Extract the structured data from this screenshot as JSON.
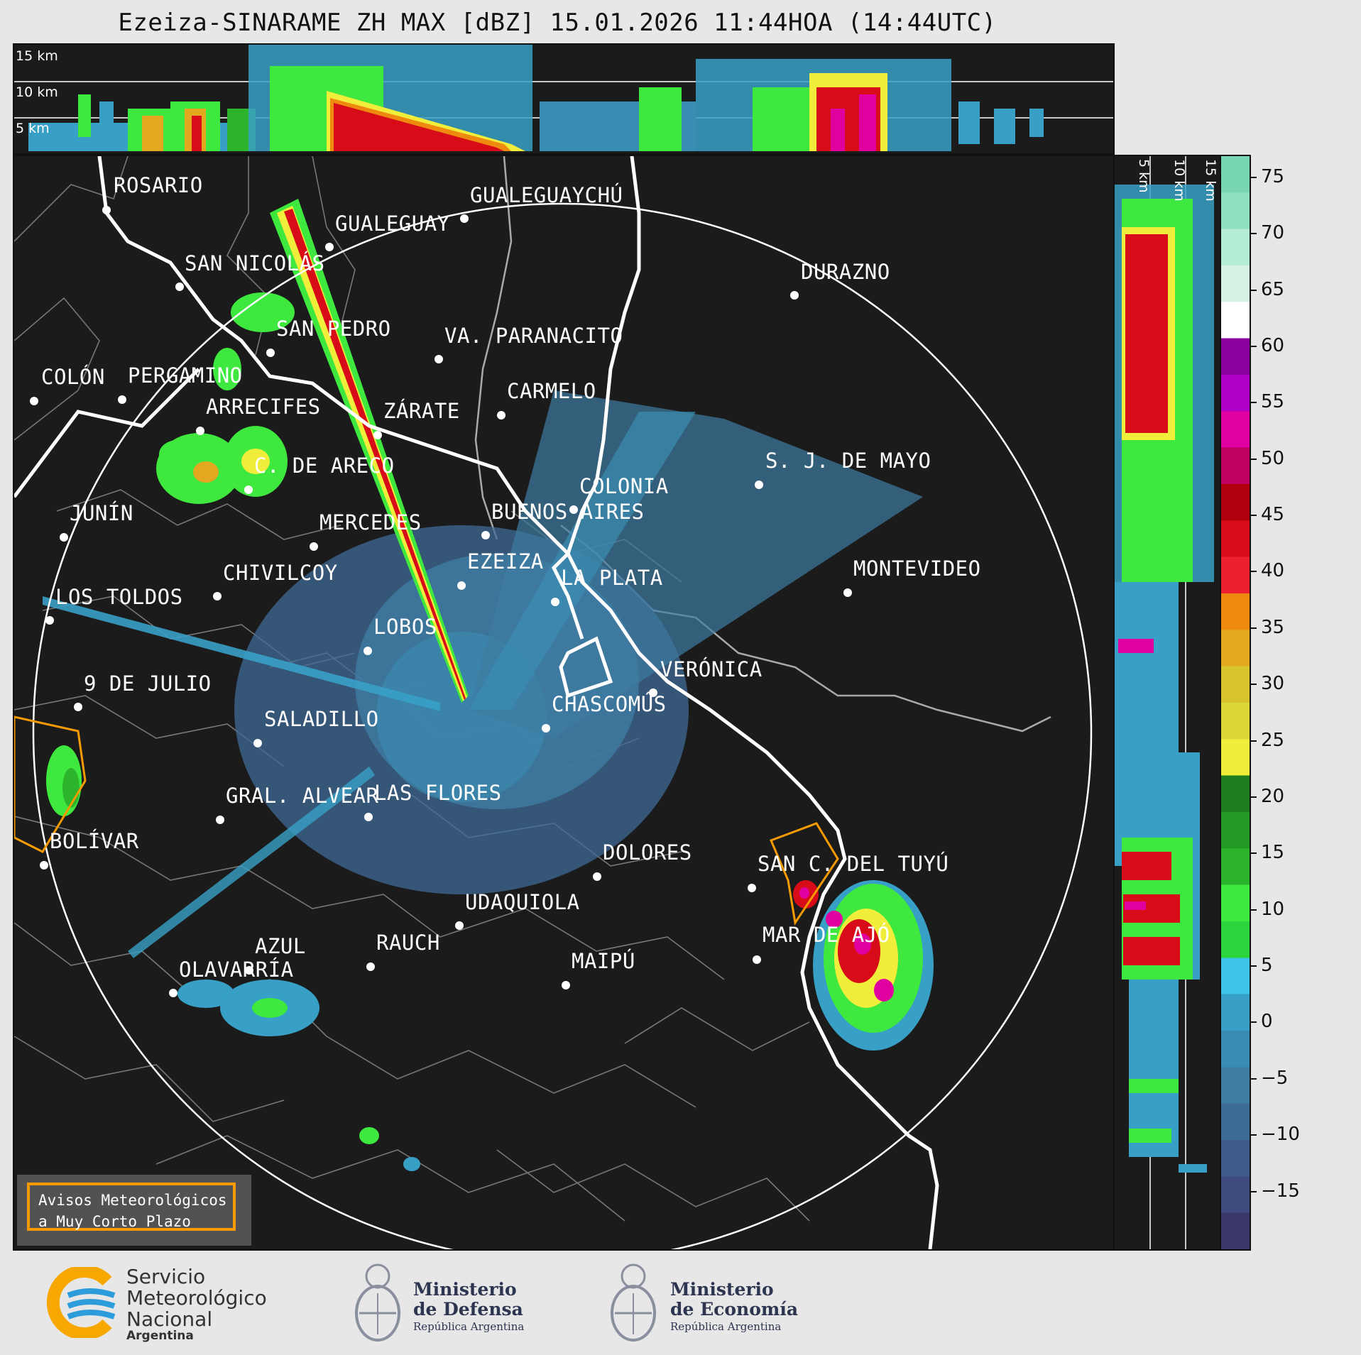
{
  "title": "Ezeiza-SINARAME ZH MAX [dBZ] 15.01.2026 11:44HOA (14:44UTC)",
  "top_panel": {
    "altitudes": [
      "15 km",
      "10 km",
      "5 km"
    ]
  },
  "side_panel": {
    "altitudes": [
      "5 km",
      "10 km",
      "15 km"
    ]
  },
  "colorbar": {
    "ticks": [
      "75",
      "70",
      "65",
      "60",
      "55",
      "50",
      "45",
      "40",
      "35",
      "30",
      "25",
      "20",
      "15",
      "10",
      "5",
      "0",
      "−5",
      "−10",
      "−15"
    ],
    "range": [
      -20,
      77
    ],
    "colors": [
      "#3a3868",
      "#3d4a7e",
      "#3f5b8c",
      "#3f6b97",
      "#3e7ca3",
      "#3a8db2",
      "#38a0c6",
      "#3ec2e8",
      "#2ad43a",
      "#3ee83e",
      "#2cb42c",
      "#239a23",
      "#1e7e1e",
      "#f0ee3a",
      "#dcd838",
      "#d8c42c",
      "#e4a820",
      "#ee8a10",
      "#ec2030",
      "#d80c18",
      "#b00010",
      "#c00060",
      "#e000a0",
      "#b000c8",
      "#8c00a0",
      "#ffffff",
      "#d6f4e6",
      "#b4ecd4",
      "#8ee0c0",
      "#78d6b2"
    ]
  },
  "map": {
    "cities": [
      {
        "name": "ROSARIO"
      },
      {
        "name": "GUALEGUAYCHÚ"
      },
      {
        "name": "GUALEGUAY"
      },
      {
        "name": "SAN NICOLÁS"
      },
      {
        "name": "DURAZNO"
      },
      {
        "name": "SAN PEDRO"
      },
      {
        "name": "VA. PARANACITO"
      },
      {
        "name": "COLÓN"
      },
      {
        "name": "PERGAMINO"
      },
      {
        "name": "CARMELO"
      },
      {
        "name": "ARRECIFES"
      },
      {
        "name": "ZÁRATE"
      },
      {
        "name": "S. J. DE MAYO"
      },
      {
        "name": "C. DE ARECO"
      },
      {
        "name": "COLONIA"
      },
      {
        "name": "JUNÍN"
      },
      {
        "name": "BUENOS AIRES"
      },
      {
        "name": "MERCEDES"
      },
      {
        "name": "MONTEVIDEO"
      },
      {
        "name": "EZEIZA"
      },
      {
        "name": "CHIVILCOY"
      },
      {
        "name": "LA PLATA"
      },
      {
        "name": "LOS TOLDOS"
      },
      {
        "name": "LOBOS"
      },
      {
        "name": "VERÓNICA"
      },
      {
        "name": "9 DE JULIO"
      },
      {
        "name": "CHASCOMÚS"
      },
      {
        "name": "SALADILLO"
      },
      {
        "name": "GRAL. ALVEAR"
      },
      {
        "name": "LAS FLORES"
      },
      {
        "name": "BOLÍVAR"
      },
      {
        "name": "DOLORES"
      },
      {
        "name": "SAN C. DEL TUYÚ"
      },
      {
        "name": "UDAQUIOLA"
      },
      {
        "name": "MAR DE AJÓ"
      },
      {
        "name": "RAUCH"
      },
      {
        "name": "AZUL"
      },
      {
        "name": "OLAVARRÍA"
      },
      {
        "name": "MAIPÚ"
      }
    ],
    "warning_box": {
      "line1": "Avisos Meteorológicos",
      "line2": "a Muy Corto Plazo"
    },
    "warning_color": "#f59a00"
  },
  "logos": {
    "smn": {
      "line1": "Servicio",
      "line2": "Meteorológico",
      "line3": "Nacional",
      "line4": "Argentina",
      "icon": "smn-logo-icon"
    },
    "defensa": {
      "line1": "Ministerio",
      "line2": "de Defensa",
      "line3": "República Argentina",
      "icon": "national-coat-of-arms-icon"
    },
    "economia": {
      "line1": "Ministerio",
      "line2": "de Economía",
      "line3": "República Argentina",
      "icon": "national-coat-of-arms-icon"
    }
  }
}
